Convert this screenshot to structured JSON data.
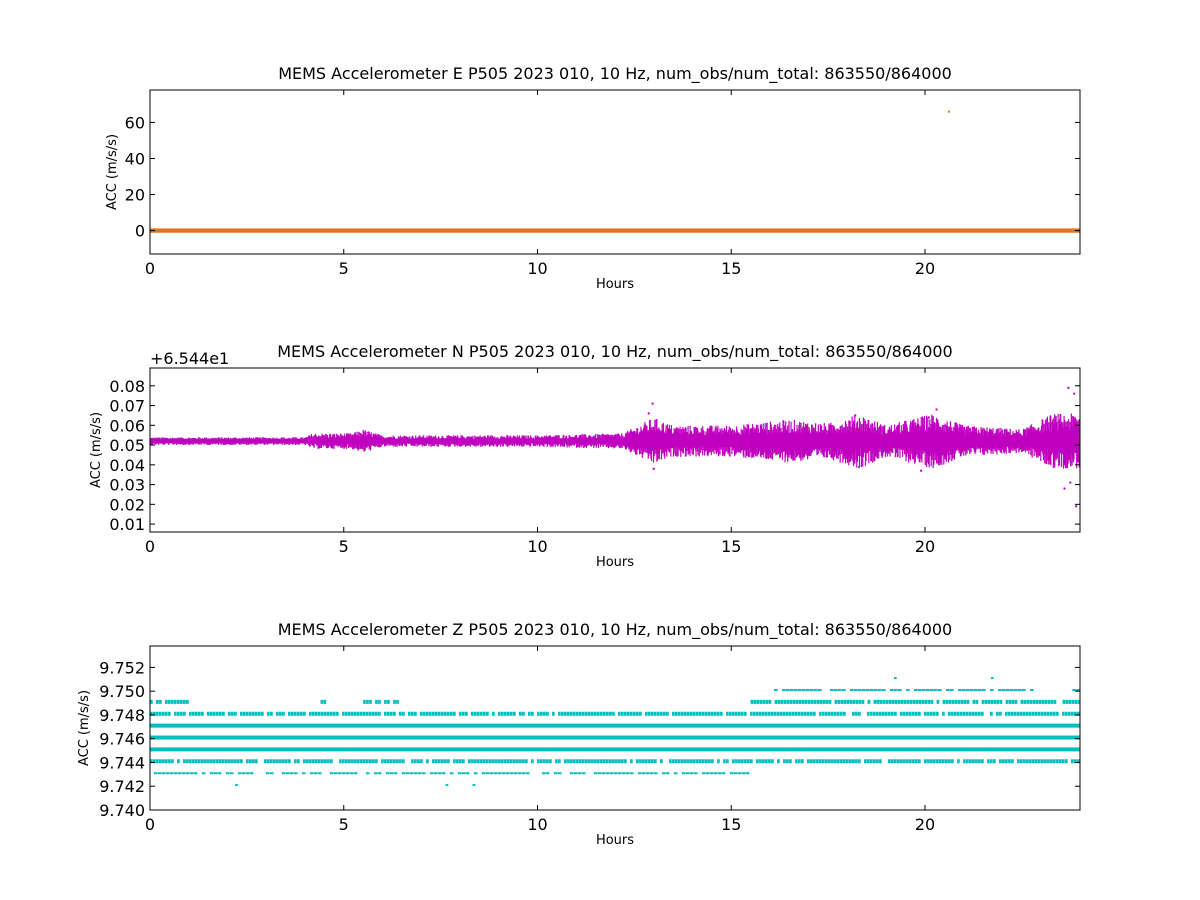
{
  "chart_data": [
    {
      "type": "scatter",
      "title": "MEMS Accelerometer E P505 2023 010, 10 Hz, num_obs/num_total: 863550/864000",
      "xlabel": "Hours",
      "ylabel": "ACC (m/s/s)",
      "xlim": [
        0,
        24
      ],
      "ylim": [
        -13,
        78
      ],
      "x_ticks": [
        0,
        5,
        10,
        15,
        20
      ],
      "x_tick_labels": [
        "0",
        "5",
        "10",
        "15",
        "20"
      ],
      "y_ticks": [
        0,
        20,
        40,
        60
      ],
      "y_tick_labels": [
        "0",
        "20",
        "40",
        "60"
      ],
      "color": "#e2711d",
      "grid": false,
      "series": [
        {
          "x": [
            0,
            24
          ],
          "y": [
            0,
            0
          ],
          "spread": 0.6
        }
      ],
      "outliers": [
        {
          "x": 20.62,
          "y": 66
        }
      ]
    },
    {
      "type": "scatter",
      "title": "MEMS Accelerometer N P505 2023 010, 10 Hz, num_obs/num_total: 863550/864000",
      "xlabel": "Hours",
      "ylabel": "ACC (m/s/s)",
      "offset_label": "+6.544e1",
      "xlim": [
        0,
        24
      ],
      "ylim": [
        0.006,
        0.089
      ],
      "x_ticks": [
        0,
        5,
        10,
        15,
        20
      ],
      "x_tick_labels": [
        "0",
        "5",
        "10",
        "15",
        "20"
      ],
      "y_ticks": [
        0.01,
        0.02,
        0.03,
        0.04,
        0.05,
        0.06,
        0.07,
        0.08
      ],
      "y_tick_labels": [
        "0.01",
        "0.02",
        "0.03",
        "0.04",
        "0.05",
        "0.06",
        "0.07",
        "0.08"
      ],
      "color": "#bf00bf",
      "grid": false,
      "center": 0.052,
      "noise_envelope": [
        [
          0,
          0.002
        ],
        [
          4,
          0.002
        ],
        [
          4.2,
          0.004
        ],
        [
          5.2,
          0.004
        ],
        [
          5.5,
          0.006
        ],
        [
          6,
          0.003
        ],
        [
          10,
          0.003
        ],
        [
          12.2,
          0.004
        ],
        [
          12.6,
          0.008
        ],
        [
          13,
          0.012
        ],
        [
          13.5,
          0.008
        ],
        [
          15,
          0.008
        ],
        [
          16.5,
          0.011
        ],
        [
          17.5,
          0.009
        ],
        [
          18.3,
          0.014
        ],
        [
          19,
          0.008
        ],
        [
          20.2,
          0.014
        ],
        [
          21,
          0.008
        ],
        [
          22.5,
          0.006
        ],
        [
          23.3,
          0.014
        ],
        [
          24,
          0.014
        ]
      ],
      "outliers": [
        {
          "x": 12.97,
          "y": 0.071
        },
        {
          "x": 12.87,
          "y": 0.066
        },
        {
          "x": 13.0,
          "y": 0.038
        },
        {
          "x": 20.3,
          "y": 0.068
        },
        {
          "x": 20.1,
          "y": 0.064
        },
        {
          "x": 19.9,
          "y": 0.037
        },
        {
          "x": 18.2,
          "y": 0.065
        },
        {
          "x": 18.3,
          "y": 0.039
        },
        {
          "x": 23.7,
          "y": 0.079
        },
        {
          "x": 23.85,
          "y": 0.076
        },
        {
          "x": 23.6,
          "y": 0.028
        },
        {
          "x": 23.9,
          "y": 0.019
        },
        {
          "x": 23.75,
          "y": 0.031
        }
      ]
    },
    {
      "type": "scatter",
      "title": "MEMS Accelerometer Z P505 2023 010, 10 Hz, num_obs/num_total: 863550/864000",
      "xlabel": "Hours",
      "ylabel": "ACC (m/s/s)",
      "xlim": [
        0,
        24
      ],
      "ylim": [
        9.74,
        9.7538
      ],
      "x_ticks": [
        0,
        5,
        10,
        15,
        20
      ],
      "x_tick_labels": [
        "0",
        "5",
        "10",
        "15",
        "20"
      ],
      "y_ticks": [
        9.74,
        9.742,
        9.744,
        9.746,
        9.748,
        9.75,
        9.752
      ],
      "y_tick_labels": [
        "9.740",
        "9.742",
        "9.744",
        "9.746",
        "9.748",
        "9.750",
        "9.752"
      ],
      "color": "#00bfbf",
      "grid": false,
      "levels": [
        {
          "y": 9.7521,
          "ranges": [
            [
              21.6,
              21.7
            ]
          ],
          "density": "sparse"
        },
        {
          "y": 9.7511,
          "ranges": [
            [
              18.2,
              18.6
            ],
            [
              19.2,
              19.4
            ],
            [
              21.7,
              21.8
            ]
          ],
          "density": "sparse"
        },
        {
          "y": 9.7501,
          "ranges": [
            [
              16.0,
              22.8
            ],
            [
              23.8,
              24
            ]
          ],
          "density": "dense"
        },
        {
          "y": 9.7491,
          "ranges": [
            [
              0,
              1.0
            ],
            [
              4.4,
              4.5
            ],
            [
              5.5,
              6.4
            ],
            [
              15.5,
              24
            ]
          ],
          "density": "heavy"
        },
        {
          "y": 9.7481,
          "ranges": [
            [
              0,
              24
            ]
          ],
          "density": "heavy"
        },
        {
          "y": 9.7471,
          "ranges": [
            [
              0,
              24
            ]
          ],
          "density": "full"
        },
        {
          "y": 9.7461,
          "ranges": [
            [
              0,
              24
            ]
          ],
          "density": "full"
        },
        {
          "y": 9.7451,
          "ranges": [
            [
              0,
              24
            ]
          ],
          "density": "full"
        },
        {
          "y": 9.7441,
          "ranges": [
            [
              0,
              24
            ]
          ],
          "density": "heavy"
        },
        {
          "y": 9.7431,
          "ranges": [
            [
              0.1,
              15.5
            ]
          ],
          "density": "dense"
        },
        {
          "y": 9.7421,
          "ranges": [
            [
              1.5,
              2.6
            ],
            [
              6.7,
              8.5
            ],
            [
              11.5,
              11.7
            ],
            [
              23.8,
              23.9
            ]
          ],
          "density": "sparse"
        }
      ]
    }
  ]
}
